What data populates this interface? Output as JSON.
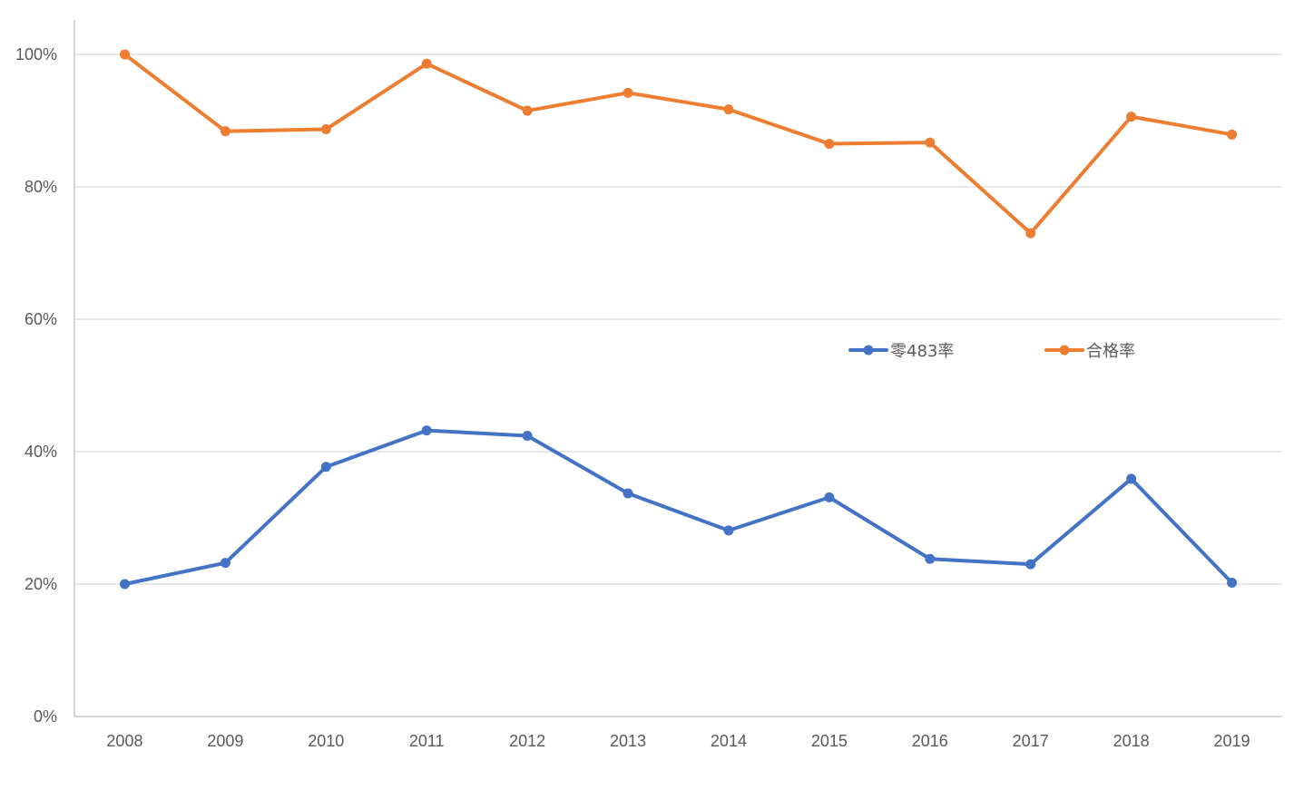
{
  "chart_data": {
    "type": "line",
    "title": "",
    "xlabel": "",
    "ylabel": "",
    "categories": [
      "2008",
      "2009",
      "2010",
      "2011",
      "2012",
      "2013",
      "2014",
      "2015",
      "2016",
      "2017",
      "2018",
      "2019"
    ],
    "y_ticks": [
      "0%",
      "20%",
      "40%",
      "60%",
      "80%",
      "100%"
    ],
    "y_tick_values": [
      0,
      20,
      40,
      60,
      80,
      100
    ],
    "ylim": [
      0,
      100
    ],
    "grid": true,
    "legend_position": "center-right",
    "series": [
      {
        "name": "零483率",
        "color": "#4472C4",
        "values": [
          20.0,
          23.2,
          37.7,
          43.2,
          42.4,
          33.7,
          28.1,
          33.1,
          23.8,
          23.0,
          35.9,
          20.2
        ]
      },
      {
        "name": "合格率",
        "color": "#ED7D31",
        "values": [
          100.0,
          88.4,
          88.7,
          98.6,
          91.5,
          94.2,
          91.7,
          86.5,
          86.7,
          73.0,
          90.6,
          87.9
        ]
      }
    ]
  }
}
